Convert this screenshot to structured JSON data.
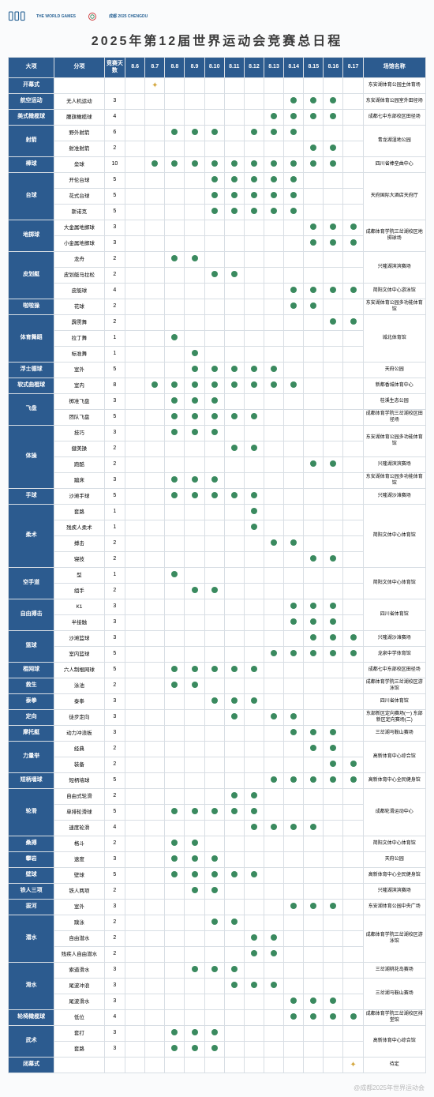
{
  "title": "2025年第12届世界运动会竞赛总日程",
  "logo_text1": "THE WORLD GAMES",
  "logo_text2": "成都 2025 CHENGDU",
  "watermark": "@成都2025年世界运动会",
  "headers": {
    "cat": "大项",
    "sub": "分项",
    "days": "竞赛天数",
    "dates": [
      "8.6",
      "8.7",
      "8.8",
      "8.9",
      "8.10",
      "8.11",
      "8.12",
      "8.13",
      "8.14",
      "8.15",
      "8.16",
      "8.17"
    ],
    "venue": "场馆名称"
  },
  "colors": {
    "header_bg": "#2c5b8f",
    "dot": "#3a8a5f",
    "star": "#d4a840",
    "border": "#d8dee4"
  },
  "rows": [
    {
      "cat": "开幕式",
      "sub": "",
      "days": "",
      "marks": [
        "",
        "S",
        "",
        "",
        "",
        "",
        "",
        "",
        "",
        "",
        "",
        ""
      ],
      "venue": "东安湖体育公园主体育场"
    },
    {
      "cat": "航空运动",
      "sub": "无人机运动",
      "days": "3",
      "marks": [
        "",
        "",
        "",
        "",
        "",
        "",
        "",
        "",
        "D",
        "D",
        "D",
        ""
      ],
      "venue": "东安湖体育公园室外田径场"
    },
    {
      "cat": "美式橄榄球",
      "sub": "腰旗橄榄球",
      "days": "4",
      "marks": [
        "",
        "",
        "",
        "",
        "",
        "",
        "",
        "D",
        "D",
        "D",
        "D",
        ""
      ],
      "venue": "成都七中东部校区田径场"
    },
    {
      "cat": "射箭",
      "catspan": 2,
      "sub": "野外射箭",
      "days": "6",
      "marks": [
        "",
        "",
        "D",
        "D",
        "D",
        "",
        "D",
        "D",
        "D",
        "",
        "",
        ""
      ],
      "venue": "青龙湖湿地公园",
      "venuespan": 2
    },
    {
      "sub": "射准射箭",
      "days": "2",
      "marks": [
        "",
        "",
        "",
        "",
        "",
        "",
        "",
        "",
        "",
        "D",
        "D",
        ""
      ]
    },
    {
      "cat": "棒球",
      "sub": "垒球",
      "days": "10",
      "marks": [
        "",
        "D",
        "D",
        "D",
        "D",
        "D",
        "D",
        "D",
        "D",
        "D",
        "D",
        ""
      ],
      "venue": "四川省棒垒曲中心"
    },
    {
      "cat": "台球",
      "catspan": 3,
      "sub": "开伦台球",
      "days": "5",
      "marks": [
        "",
        "",
        "",
        "",
        "D",
        "D",
        "D",
        "D",
        "D",
        "",
        "",
        ""
      ],
      "venue": "天府国际大酒店天府厅",
      "venuespan": 3
    },
    {
      "sub": "花式台球",
      "days": "5",
      "marks": [
        "",
        "",
        "",
        "",
        "D",
        "D",
        "D",
        "D",
        "D",
        "",
        "",
        ""
      ]
    },
    {
      "sub": "斯诺克",
      "days": "5",
      "marks": [
        "",
        "",
        "",
        "",
        "D",
        "D",
        "D",
        "D",
        "D",
        "",
        "",
        ""
      ]
    },
    {
      "cat": "地掷球",
      "catspan": 2,
      "sub": "大金属地掷球",
      "days": "3",
      "marks": [
        "",
        "",
        "",
        "",
        "",
        "",
        "",
        "",
        "",
        "D",
        "D",
        "D"
      ],
      "venue": "成都体育学院三岔湖校区地掷球场",
      "venuespan": 2
    },
    {
      "sub": "小金属地掷球",
      "days": "3",
      "marks": [
        "",
        "",
        "",
        "",
        "",
        "",
        "",
        "",
        "",
        "D",
        "D",
        "D"
      ]
    },
    {
      "cat": "皮划艇",
      "catspan": 3,
      "sub": "龙舟",
      "days": "2",
      "marks": [
        "",
        "",
        "D",
        "D",
        "",
        "",
        "",
        "",
        "",
        "",
        "",
        ""
      ],
      "venue": "兴隆湖滨滨赛场",
      "venuespan": 2
    },
    {
      "sub": "皮划艇马拉松",
      "days": "2",
      "marks": [
        "",
        "",
        "",
        "",
        "D",
        "D",
        "",
        "",
        "",
        "",
        "",
        ""
      ]
    },
    {
      "sub": "皮艇球",
      "days": "4",
      "marks": [
        "",
        "",
        "",
        "",
        "",
        "",
        "",
        "",
        "D",
        "D",
        "D",
        "D"
      ],
      "venue": "简阳文体中心游泳馆"
    },
    {
      "cat": "啦啦操",
      "sub": "花球",
      "days": "2",
      "marks": [
        "",
        "",
        "",
        "",
        "",
        "",
        "",
        "",
        "D",
        "D",
        "",
        ""
      ],
      "venue": "东安湖体育公园多功能体育馆"
    },
    {
      "cat": "体育舞蹈",
      "catspan": 3,
      "sub": "霹雳舞",
      "days": "2",
      "marks": [
        "",
        "",
        "",
        "",
        "",
        "",
        "",
        "",
        "",
        "",
        "D",
        "D"
      ],
      "venue": "城北体育馆",
      "venuespan": 3
    },
    {
      "sub": "拉丁舞",
      "days": "1",
      "marks": [
        "",
        "",
        "D",
        "",
        "",
        "",
        "",
        "",
        "",
        "",
        "",
        ""
      ]
    },
    {
      "sub": "标准舞",
      "days": "1",
      "marks": [
        "",
        "",
        "",
        "D",
        "",
        "",
        "",
        "",
        "",
        "",
        "",
        ""
      ]
    },
    {
      "cat": "浮士德球",
      "sub": "室外",
      "days": "5",
      "marks": [
        "",
        "",
        "",
        "D",
        "D",
        "D",
        "D",
        "D",
        "",
        "",
        "",
        ""
      ],
      "venue": "天府公园"
    },
    {
      "cat": "软式曲棍球",
      "sub": "室内",
      "days": "8",
      "marks": [
        "",
        "D",
        "D",
        "D",
        "D",
        "D",
        "D",
        "D",
        "D",
        "",
        "",
        ""
      ],
      "venue": "新都香城体育中心"
    },
    {
      "cat": "飞盘",
      "catspan": 2,
      "sub": "掷准飞盘",
      "days": "3",
      "marks": [
        "",
        "",
        "D",
        "D",
        "D",
        "",
        "",
        "",
        "",
        "",
        "",
        ""
      ],
      "venue": "桂溪生态公园"
    },
    {
      "sub": "团队飞盘",
      "days": "5",
      "marks": [
        "",
        "",
        "D",
        "D",
        "D",
        "D",
        "D",
        "",
        "",
        "",
        "",
        ""
      ],
      "venue": "成都体育学院三岔湖校区田径场"
    },
    {
      "cat": "体操",
      "catspan": 4,
      "sub": "技巧",
      "days": "3",
      "marks": [
        "",
        "",
        "D",
        "D",
        "D",
        "",
        "",
        "",
        "",
        "",
        "",
        ""
      ],
      "venue": "东安湖体育公园多功能体育馆",
      "venuespan": 2
    },
    {
      "sub": "健美操",
      "days": "2",
      "marks": [
        "",
        "",
        "",
        "",
        "",
        "D",
        "D",
        "",
        "",
        "",
        "",
        ""
      ]
    },
    {
      "sub": "跑酷",
      "days": "2",
      "marks": [
        "",
        "",
        "",
        "",
        "",
        "",
        "",
        "",
        "",
        "D",
        "D",
        ""
      ],
      "venue": "兴隆湖滨滨赛场"
    },
    {
      "sub": "蹦床",
      "days": "3",
      "marks": [
        "",
        "",
        "D",
        "D",
        "D",
        "",
        "",
        "",
        "",
        "",
        "",
        ""
      ],
      "venue": "东安湖体育公园多功能体育馆"
    },
    {
      "cat": "手球",
      "sub": "沙滩手球",
      "days": "5",
      "marks": [
        "",
        "",
        "D",
        "D",
        "D",
        "D",
        "D",
        "",
        "",
        "",
        "",
        ""
      ],
      "venue": "兴隆湖沙滩赛场"
    },
    {
      "cat": "柔术",
      "catspan": 4,
      "sub": "套路",
      "days": "1",
      "marks": [
        "",
        "",
        "",
        "",
        "",
        "",
        "D",
        "",
        "",
        "",
        "",
        ""
      ],
      "venue": "简阳文体中心体育馆",
      "venuespan": 4
    },
    {
      "sub": "残疾人柔术",
      "days": "1",
      "marks": [
        "",
        "",
        "",
        "",
        "",
        "",
        "D",
        "",
        "",
        "",
        "",
        ""
      ]
    },
    {
      "sub": "搏击",
      "days": "2",
      "marks": [
        "",
        "",
        "",
        "",
        "",
        "",
        "",
        "D",
        "D",
        "",
        "",
        ""
      ]
    },
    {
      "sub": "寝技",
      "days": "2",
      "marks": [
        "",
        "",
        "",
        "",
        "",
        "",
        "",
        "",
        "",
        "D",
        "D",
        ""
      ]
    },
    {
      "cat": "空手道",
      "catspan": 2,
      "sub": "型",
      "days": "1",
      "marks": [
        "",
        "",
        "D",
        "",
        "",
        "",
        "",
        "",
        "",
        "",
        "",
        ""
      ],
      "venue": "简阳文体中心体育馆",
      "venuespan": 2
    },
    {
      "sub": "组手",
      "days": "2",
      "marks": [
        "",
        "",
        "",
        "D",
        "D",
        "",
        "",
        "",
        "",
        "",
        "",
        ""
      ]
    },
    {
      "cat": "自由搏击",
      "catspan": 2,
      "sub": "K1",
      "days": "3",
      "marks": [
        "",
        "",
        "",
        "",
        "",
        "",
        "",
        "",
        "D",
        "D",
        "D",
        ""
      ],
      "venue": "四川省体育馆",
      "venuespan": 2
    },
    {
      "sub": "半接触",
      "days": "3",
      "marks": [
        "",
        "",
        "",
        "",
        "",
        "",
        "",
        "",
        "D",
        "D",
        "D",
        ""
      ]
    },
    {
      "cat": "篮球",
      "catspan": 2,
      "sub": "沙滩篮球",
      "days": "3",
      "marks": [
        "",
        "",
        "",
        "",
        "",
        "",
        "",
        "",
        "",
        "D",
        "D",
        "D"
      ],
      "venue": "兴隆湖沙滩赛场"
    },
    {
      "sub": "室内篮球",
      "days": "5",
      "marks": [
        "",
        "",
        "",
        "",
        "",
        "",
        "",
        "D",
        "D",
        "D",
        "D",
        "D"
      ],
      "venue": "龙泉中学体育馆"
    },
    {
      "cat": "棍网球",
      "sub": "六人制棍网球",
      "days": "5",
      "marks": [
        "",
        "",
        "D",
        "D",
        "D",
        "D",
        "D",
        "",
        "",
        "",
        "",
        ""
      ],
      "venue": "成都七中东部校区田径场"
    },
    {
      "cat": "救生",
      "sub": "泳池",
      "days": "2",
      "marks": [
        "",
        "",
        "D",
        "D",
        "",
        "",
        "",
        "",
        "",
        "",
        "",
        ""
      ],
      "venue": "成都体育学院三岔湖校区游泳馆"
    },
    {
      "cat": "泰拳",
      "sub": "泰拳",
      "days": "3",
      "marks": [
        "",
        "",
        "",
        "",
        "D",
        "D",
        "D",
        "",
        "",
        "",
        "",
        ""
      ],
      "venue": "四川省体育馆"
    },
    {
      "cat": "定向",
      "sub": "徒步定向",
      "days": "3",
      "marks": [
        "",
        "",
        "",
        "",
        "",
        "D",
        "",
        "D",
        "D",
        "",
        "",
        ""
      ],
      "venue": "东部新区定向赛场(一) 东部新区定向赛场(二)"
    },
    {
      "cat": "摩托艇",
      "sub": "动力冲浪板",
      "days": "3",
      "marks": [
        "",
        "",
        "",
        "",
        "",
        "",
        "",
        "",
        "D",
        "D",
        "D",
        ""
      ],
      "venue": "三岔湖马鞍山赛场"
    },
    {
      "cat": "力量举",
      "catspan": 2,
      "sub": "经典",
      "days": "2",
      "marks": [
        "",
        "",
        "",
        "",
        "",
        "",
        "",
        "",
        "",
        "D",
        "D",
        ""
      ],
      "venue": "高新体育中心综合馆",
      "venuespan": 2
    },
    {
      "sub": "装备",
      "days": "2",
      "marks": [
        "",
        "",
        "",
        "",
        "",
        "",
        "",
        "",
        "",
        "",
        "D",
        "D"
      ]
    },
    {
      "cat": "短柄墙球",
      "sub": "短柄墙球",
      "days": "5",
      "marks": [
        "",
        "",
        "",
        "",
        "",
        "",
        "",
        "D",
        "D",
        "D",
        "D",
        "D"
      ],
      "venue": "高新体育中心全民健身馆"
    },
    {
      "cat": "轮滑",
      "catspan": 3,
      "sub": "自由式轮滑",
      "days": "2",
      "marks": [
        "",
        "",
        "",
        "",
        "",
        "D",
        "D",
        "",
        "",
        "",
        "",
        ""
      ],
      "venue": "成都轮滑运动中心",
      "venuespan": 3
    },
    {
      "sub": "单排轮滑球",
      "days": "5",
      "marks": [
        "",
        "",
        "D",
        "D",
        "D",
        "D",
        "D",
        "",
        "",
        "",
        "",
        ""
      ]
    },
    {
      "sub": "速度轮滑",
      "days": "4",
      "marks": [
        "",
        "",
        "",
        "",
        "",
        "",
        "D",
        "D",
        "D",
        "D",
        "",
        ""
      ]
    },
    {
      "cat": "桑搏",
      "sub": "格斗",
      "days": "2",
      "marks": [
        "",
        "",
        "D",
        "D",
        "",
        "",
        "",
        "",
        "",
        "",
        "",
        ""
      ],
      "venue": "简阳文体中心体育馆"
    },
    {
      "cat": "攀岩",
      "sub": "速度",
      "days": "3",
      "marks": [
        "",
        "",
        "D",
        "D",
        "D",
        "",
        "",
        "",
        "",
        "",
        "",
        ""
      ],
      "venue": "天府公园"
    },
    {
      "cat": "壁球",
      "sub": "壁球",
      "days": "5",
      "marks": [
        "",
        "",
        "D",
        "D",
        "D",
        "D",
        "D",
        "",
        "",
        "",
        "",
        ""
      ],
      "venue": "高新体育中心全民健身馆"
    },
    {
      "cat": "铁人三项",
      "sub": "铁人两项",
      "days": "2",
      "marks": [
        "",
        "",
        "",
        "D",
        "D",
        "",
        "",
        "",
        "",
        "",
        "",
        ""
      ],
      "venue": "兴隆湖滨滨赛场"
    },
    {
      "cat": "拔河",
      "sub": "室外",
      "days": "3",
      "marks": [
        "",
        "",
        "",
        "",
        "",
        "",
        "",
        "",
        "D",
        "D",
        "D",
        ""
      ],
      "venue": "东安湖体育公园中央广场"
    },
    {
      "cat": "潜水",
      "catspan": 3,
      "sub": "蹼泳",
      "days": "2",
      "marks": [
        "",
        "",
        "",
        "",
        "D",
        "D",
        "",
        "",
        "",
        "",
        "",
        ""
      ],
      "venue": "成都体育学院三岔湖校区游泳馆",
      "venuespan": 3
    },
    {
      "sub": "自由潜水",
      "days": "2",
      "marks": [
        "",
        "",
        "",
        "",
        "",
        "",
        "D",
        "D",
        "",
        "",
        "",
        ""
      ]
    },
    {
      "sub": "残疾人自由潜水",
      "days": "2",
      "marks": [
        "",
        "",
        "",
        "",
        "",
        "",
        "D",
        "D",
        "",
        "",
        "",
        ""
      ]
    },
    {
      "cat": "滑水",
      "catspan": 3,
      "sub": "索道滑水",
      "days": "3",
      "marks": [
        "",
        "",
        "",
        "D",
        "D",
        "D",
        "",
        "",
        "",
        "",
        "",
        ""
      ],
      "venue": "三岔湖桃花岛赛场"
    },
    {
      "sub": "尾波冲浪",
      "days": "3",
      "marks": [
        "",
        "",
        "",
        "",
        "",
        "D",
        "D",
        "D",
        "",
        "",
        "",
        ""
      ],
      "venue": "三岔湖马鞍山赛场",
      "venuespan": 2
    },
    {
      "sub": "尾波滑水",
      "days": "3",
      "marks": [
        "",
        "",
        "",
        "",
        "",
        "",
        "",
        "",
        "D",
        "D",
        "D",
        ""
      ]
    },
    {
      "cat": "轮椅橄榄球",
      "sub": "低位",
      "days": "4",
      "marks": [
        "",
        "",
        "",
        "",
        "",
        "",
        "",
        "",
        "D",
        "D",
        "D",
        "D"
      ],
      "venue": "成都体育学院三岔湖校区排堂馆"
    },
    {
      "cat": "武术",
      "catspan": 2,
      "sub": "套打",
      "days": "3",
      "marks": [
        "",
        "",
        "D",
        "D",
        "D",
        "",
        "",
        "",
        "",
        "",
        "",
        ""
      ],
      "venue": "高新体育中心综合馆",
      "venuespan": 2
    },
    {
      "sub": "套路",
      "days": "3",
      "marks": [
        "",
        "",
        "D",
        "D",
        "D",
        "",
        "",
        "",
        "",
        "",
        "",
        ""
      ]
    },
    {
      "cat": "闭幕式",
      "sub": "",
      "days": "",
      "marks": [
        "",
        "",
        "",
        "",
        "",
        "",
        "",
        "",
        "",
        "",
        "",
        "S"
      ],
      "venue": "待定"
    }
  ]
}
